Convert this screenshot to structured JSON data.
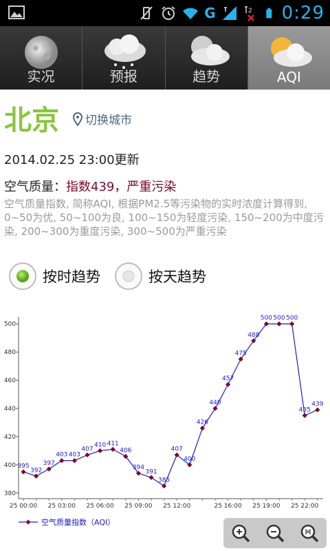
{
  "status_bar": {
    "network": "G",
    "sim_index": "2",
    "time": "0:29",
    "accent_color": "#27b3ea"
  },
  "tabs": [
    {
      "label": "实况",
      "icon": "moon-icon",
      "active": false
    },
    {
      "label": "预报",
      "icon": "snow-cloud-icon",
      "active": false
    },
    {
      "label": "趋势",
      "icon": "moon-cloud-icon",
      "active": false
    },
    {
      "label": "AQI",
      "icon": "sun-cloud-icon",
      "active": true
    }
  ],
  "city": {
    "name": "北京",
    "switch_label": "切换城市",
    "color": "#8bc53f"
  },
  "updated": "2014.02.25 23:00更新",
  "aqi": {
    "label": "空气质量：",
    "value": "指数439，严重污染",
    "value_color": "#7b0a2a",
    "description": "空气质量指数, 简称AQI, 根据PM2.5等污染物的实时浓度计算得到, 0~50为优, 50~100为良, 100~150为轻度污染, 150~200为中度污染, 200~300为重度污染, 300~500为严重污染"
  },
  "radio": {
    "hourly_label": "按时趋势",
    "daily_label": "按天趋势",
    "selected": "hourly"
  },
  "chart_data": {
    "type": "line",
    "x": [
      "25 00:00",
      "25 01:00",
      "25 02:00",
      "25 03:00",
      "25 04:00",
      "25 05:00",
      "25 06:00",
      "25 07:00",
      "25 08:00",
      "25 09:00",
      "25 10:00",
      "25 11:00",
      "25 12:00",
      "25 13:00",
      "25 14:00",
      "25 15:00",
      "25 16:00",
      "25 17:00",
      "25 18:00",
      "25 19:00",
      "25 20:00",
      "25 21:00",
      "25 22:00",
      "25 23:00"
    ],
    "x_tick_labels": [
      "25 00:00",
      "25 03:00",
      "25 06:00",
      "25 09:00",
      "25 12:00",
      "25 16:00",
      "25 19:00",
      "25 22:00"
    ],
    "series": [
      {
        "name": "空气质量指数（AQI）",
        "values": [
          395,
          392,
          397,
          403,
          403,
          407,
          410,
          411,
          406,
          394,
          391,
          385,
          407,
          400,
          426,
          440,
          457,
          475,
          488,
          500,
          500,
          500,
          435,
          439
        ],
        "color": "#1a1ad8"
      }
    ],
    "y_ticks": [
      380,
      400,
      420,
      440,
      460,
      480,
      500
    ],
    "ylim": [
      376,
      505
    ],
    "marker_color": "#7b0a2a",
    "legend_position": "bottom-left",
    "grid": false
  },
  "zoom": {
    "zoom_in_icon": "zoom-in-icon",
    "zoom_out_icon": "zoom-out-icon",
    "fit_icon": "zoom-reset-icon"
  }
}
